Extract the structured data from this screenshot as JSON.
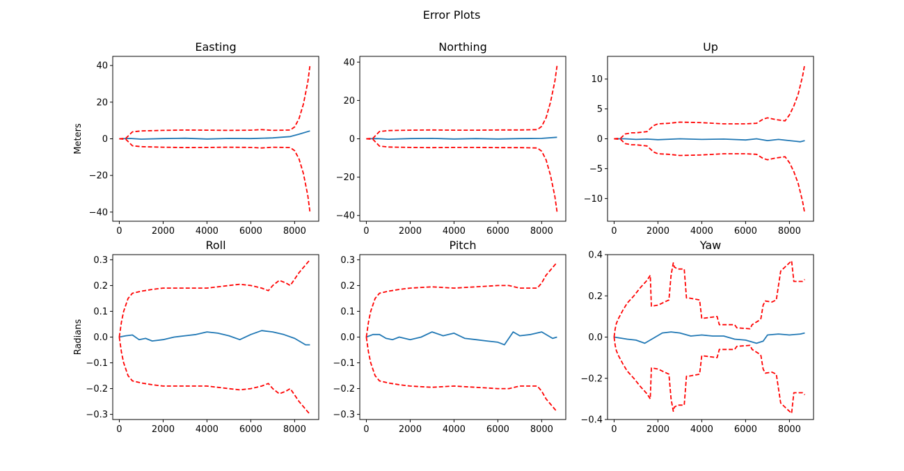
{
  "figure": {
    "title": "Error Plots"
  },
  "chart_data": [
    {
      "type": "line",
      "title": "Easting",
      "ylabel": "Meters",
      "xlabel": "",
      "xlim": [
        -300,
        9100
      ],
      "ylim": [
        -45,
        45
      ],
      "xticks": [
        0,
        2000,
        4000,
        6000,
        8000
      ],
      "yticks": [
        -40,
        -20,
        0,
        20,
        40
      ],
      "series": [
        {
          "role": "error",
          "color": "#1f77b4",
          "x": [
            0,
            500,
            1000,
            2000,
            3000,
            4000,
            5000,
            6000,
            7000,
            7800,
            8200,
            8700
          ],
          "y": [
            0,
            0.2,
            -0.2,
            0.1,
            0.3,
            -0.1,
            0.2,
            0.1,
            0.5,
            1.2,
            2.5,
            4.3
          ]
        },
        {
          "role": "upper-bound",
          "color": "#ff0000",
          "x": [
            0,
            300,
            600,
            1000,
            2000,
            3000,
            4000,
            5000,
            6000,
            6500,
            7000,
            7800,
            8000,
            8200,
            8400,
            8600,
            8700
          ],
          "y": [
            0,
            0.3,
            3.8,
            4.3,
            4.6,
            4.8,
            4.7,
            4.6,
            4.7,
            5.0,
            4.6,
            4.8,
            6.5,
            11,
            19,
            31,
            40
          ]
        },
        {
          "role": "lower-bound",
          "color": "#ff0000",
          "x": [
            0,
            300,
            600,
            1000,
            2000,
            3000,
            4000,
            5000,
            6000,
            6500,
            7000,
            7800,
            8000,
            8200,
            8400,
            8600,
            8700
          ],
          "y": [
            0,
            -0.3,
            -3.8,
            -4.3,
            -4.6,
            -4.8,
            -4.7,
            -4.6,
            -4.7,
            -5.0,
            -4.6,
            -4.8,
            -6.5,
            -11,
            -19,
            -31,
            -40
          ]
        }
      ]
    },
    {
      "type": "line",
      "title": "Northing",
      "ylabel": "",
      "xlabel": "",
      "xlim": [
        -300,
        9100
      ],
      "ylim": [
        -43,
        43
      ],
      "xticks": [
        0,
        2000,
        4000,
        6000,
        8000
      ],
      "yticks": [
        -40,
        -20,
        0,
        20,
        40
      ],
      "series": [
        {
          "role": "error",
          "color": "#1f77b4",
          "x": [
            0,
            500,
            1000,
            2000,
            3000,
            4000,
            5000,
            6000,
            7000,
            8000,
            8700
          ],
          "y": [
            0,
            0.1,
            -0.2,
            0.1,
            0.2,
            -0.1,
            0.1,
            -0.1,
            0.1,
            0.2,
            0.8
          ]
        },
        {
          "role": "upper-bound",
          "color": "#ff0000",
          "x": [
            0,
            300,
            600,
            1000,
            2000,
            3000,
            4000,
            5000,
            6000,
            7000,
            7800,
            8000,
            8200,
            8400,
            8600,
            8700
          ],
          "y": [
            0,
            0.3,
            3.8,
            4.3,
            4.5,
            4.6,
            4.5,
            4.5,
            4.6,
            4.6,
            4.8,
            6.5,
            11,
            19,
            30,
            38
          ]
        },
        {
          "role": "lower-bound",
          "color": "#ff0000",
          "x": [
            0,
            300,
            600,
            1000,
            2000,
            3000,
            4000,
            5000,
            6000,
            7000,
            7800,
            8000,
            8200,
            8400,
            8600,
            8700
          ],
          "y": [
            0,
            -0.3,
            -3.8,
            -4.3,
            -4.5,
            -4.6,
            -4.5,
            -4.5,
            -4.6,
            -4.6,
            -4.8,
            -6.5,
            -11,
            -19,
            -30,
            -38
          ]
        }
      ]
    },
    {
      "type": "line",
      "title": "Up",
      "ylabel": "",
      "xlabel": "",
      "xlim": [
        -300,
        9100
      ],
      "ylim": [
        -13.8,
        13.8
      ],
      "xticks": [
        0,
        2000,
        4000,
        6000,
        8000
      ],
      "yticks": [
        -10,
        -5,
        0,
        5,
        10
      ],
      "series": [
        {
          "role": "error",
          "color": "#1f77b4",
          "x": [
            0,
            500,
            1000,
            1500,
            2000,
            3000,
            4000,
            5000,
            6000,
            6500,
            7000,
            7500,
            8000,
            8500,
            8700
          ],
          "y": [
            0,
            0,
            -0.1,
            -0.05,
            -0.15,
            0,
            -0.1,
            -0.05,
            -0.2,
            0,
            -0.3,
            -0.1,
            -0.3,
            -0.5,
            -0.3
          ]
        },
        {
          "role": "upper-bound",
          "color": "#ff0000",
          "x": [
            0,
            300,
            500,
            800,
            1000,
            1500,
            1800,
            2000,
            2500,
            3000,
            4000,
            5000,
            6000,
            6500,
            6800,
            7000,
            7400,
            7800,
            8000,
            8200,
            8400,
            8600,
            8700
          ],
          "y": [
            0,
            0.1,
            0.8,
            1.0,
            1.0,
            1.2,
            2.2,
            2.5,
            2.6,
            2.8,
            2.7,
            2.5,
            2.5,
            2.6,
            3.3,
            3.5,
            3.2,
            3.0,
            4.0,
            5.5,
            7.5,
            10.5,
            12.5
          ]
        },
        {
          "role": "lower-bound",
          "color": "#ff0000",
          "x": [
            0,
            300,
            500,
            800,
            1000,
            1500,
            1800,
            2000,
            2500,
            3000,
            4000,
            5000,
            6000,
            6500,
            6800,
            7000,
            7400,
            7800,
            8000,
            8200,
            8400,
            8600,
            8700
          ],
          "y": [
            0,
            -0.1,
            -0.8,
            -1.0,
            -1.0,
            -1.2,
            -2.2,
            -2.5,
            -2.6,
            -2.8,
            -2.7,
            -2.5,
            -2.5,
            -2.6,
            -3.3,
            -3.5,
            -3.2,
            -3.0,
            -4.0,
            -5.5,
            -7.5,
            -10.5,
            -12.5
          ]
        }
      ]
    },
    {
      "type": "line",
      "title": "Roll",
      "ylabel": "Radians",
      "xlabel": "",
      "xlim": [
        -300,
        9100
      ],
      "ylim": [
        -0.32,
        0.32
      ],
      "xticks": [
        0,
        2000,
        4000,
        6000,
        8000
      ],
      "yticks": [
        -0.3,
        -0.2,
        -0.1,
        0.0,
        0.1,
        0.2,
        0.3
      ],
      "series": [
        {
          "role": "error",
          "color": "#1f77b4",
          "x": [
            0,
            300,
            600,
            900,
            1200,
            1500,
            2000,
            2500,
            3000,
            3500,
            4000,
            4500,
            5000,
            5500,
            6000,
            6500,
            7000,
            7500,
            8000,
            8500,
            8700
          ],
          "y": [
            0,
            0.005,
            0.008,
            -0.01,
            -0.005,
            -0.015,
            -0.01,
            0,
            0.005,
            0.01,
            0.02,
            0.015,
            0.005,
            -0.01,
            0.01,
            0.025,
            0.02,
            0.01,
            -0.005,
            -0.03,
            -0.03
          ]
        },
        {
          "role": "upper-bound",
          "color": "#ff0000",
          "x": [
            0,
            100,
            200,
            400,
            600,
            1000,
            1500,
            2000,
            3000,
            4000,
            5000,
            5500,
            6000,
            6500,
            6800,
            7000,
            7300,
            7600,
            7800,
            8200,
            8500,
            8700
          ],
          "y": [
            0,
            0.06,
            0.1,
            0.15,
            0.17,
            0.178,
            0.185,
            0.19,
            0.19,
            0.19,
            0.2,
            0.205,
            0.2,
            0.19,
            0.18,
            0.2,
            0.22,
            0.21,
            0.2,
            0.25,
            0.28,
            0.3
          ]
        },
        {
          "role": "lower-bound",
          "color": "#ff0000",
          "x": [
            0,
            100,
            200,
            400,
            600,
            1000,
            1500,
            2000,
            3000,
            4000,
            5000,
            5500,
            6000,
            6500,
            6800,
            7000,
            7300,
            7600,
            7800,
            8200,
            8500,
            8700
          ],
          "y": [
            0,
            -0.06,
            -0.1,
            -0.15,
            -0.17,
            -0.178,
            -0.185,
            -0.19,
            -0.19,
            -0.19,
            -0.2,
            -0.205,
            -0.2,
            -0.19,
            -0.18,
            -0.2,
            -0.22,
            -0.21,
            -0.2,
            -0.25,
            -0.28,
            -0.3
          ]
        }
      ]
    },
    {
      "type": "line",
      "title": "Pitch",
      "ylabel": "",
      "xlabel": "",
      "xlim": [
        -300,
        9100
      ],
      "ylim": [
        -0.32,
        0.32
      ],
      "xticks": [
        0,
        2000,
        4000,
        6000,
        8000
      ],
      "yticks": [
        -0.3,
        -0.2,
        -0.1,
        0.0,
        0.1,
        0.2,
        0.3
      ],
      "series": [
        {
          "role": "error",
          "color": "#1f77b4",
          "x": [
            0,
            300,
            600,
            900,
            1200,
            1500,
            2000,
            2500,
            3000,
            3500,
            4000,
            4500,
            5000,
            5500,
            6000,
            6300,
            6700,
            7000,
            7500,
            8000,
            8500,
            8700
          ],
          "y": [
            0,
            0.01,
            0.01,
            -0.005,
            -0.01,
            0,
            -0.01,
            0,
            0.02,
            0.005,
            0.015,
            -0.005,
            -0.01,
            -0.015,
            -0.02,
            -0.03,
            0.02,
            0.005,
            0.01,
            0.02,
            -0.005,
            0
          ]
        },
        {
          "role": "upper-bound",
          "color": "#ff0000",
          "x": [
            0,
            100,
            200,
            400,
            600,
            1000,
            1500,
            2000,
            3000,
            4000,
            5000,
            6000,
            6500,
            7000,
            7800,
            8000,
            8200,
            8500,
            8700
          ],
          "y": [
            0,
            0.06,
            0.1,
            0.15,
            0.17,
            0.178,
            0.185,
            0.19,
            0.195,
            0.19,
            0.195,
            0.2,
            0.2,
            0.19,
            0.19,
            0.21,
            0.24,
            0.27,
            0.29
          ]
        },
        {
          "role": "lower-bound",
          "color": "#ff0000",
          "x": [
            0,
            100,
            200,
            400,
            600,
            1000,
            1500,
            2000,
            3000,
            4000,
            5000,
            6000,
            6500,
            7000,
            7800,
            8000,
            8200,
            8500,
            8700
          ],
          "y": [
            0,
            -0.06,
            -0.1,
            -0.15,
            -0.17,
            -0.178,
            -0.185,
            -0.19,
            -0.195,
            -0.19,
            -0.195,
            -0.2,
            -0.2,
            -0.19,
            -0.19,
            -0.21,
            -0.24,
            -0.27,
            -0.29
          ]
        }
      ]
    },
    {
      "type": "line",
      "title": "Yaw",
      "ylabel": "",
      "xlabel": "",
      "xlim": [
        -300,
        9100
      ],
      "ylim": [
        -0.4,
        0.4
      ],
      "xticks": [
        0,
        2000,
        4000,
        6000,
        8000
      ],
      "yticks": [
        -0.4,
        -0.2,
        0.0,
        0.2,
        0.4
      ],
      "series": [
        {
          "role": "error",
          "color": "#1f77b4",
          "x": [
            0,
            300,
            600,
            1000,
            1400,
            1800,
            2200,
            2600,
            3000,
            3500,
            4000,
            4500,
            5000,
            5500,
            6000,
            6500,
            6800,
            7000,
            7500,
            8000,
            8500,
            8700
          ],
          "y": [
            0,
            -0.005,
            -0.01,
            -0.015,
            -0.03,
            -0.005,
            0.02,
            0.025,
            0.02,
            0.005,
            0.01,
            0.005,
            0.005,
            -0.01,
            -0.015,
            -0.03,
            -0.02,
            0.01,
            0.015,
            0.01,
            0.015,
            0.02
          ]
        },
        {
          "role": "upper-bound",
          "color": "#ff0000",
          "x": [
            0,
            50,
            100,
            200,
            400,
            600,
            900,
            1200,
            1500,
            1650,
            1700,
            2000,
            2500,
            2600,
            2700,
            2750,
            2900,
            3200,
            3300,
            3400,
            3900,
            4000,
            4700,
            4800,
            5500,
            5600,
            6200,
            6300,
            6600,
            6700,
            6800,
            6900,
            7200,
            7400,
            7600,
            7900,
            8100,
            8200,
            8600,
            8700
          ],
          "y": [
            0,
            0.04,
            0.065,
            0.09,
            0.13,
            0.165,
            0.2,
            0.24,
            0.275,
            0.3,
            0.15,
            0.155,
            0.18,
            0.3,
            0.36,
            0.34,
            0.33,
            0.33,
            0.19,
            0.19,
            0.18,
            0.09,
            0.1,
            0.06,
            0.06,
            0.045,
            0.04,
            0.06,
            0.08,
            0.09,
            0.155,
            0.175,
            0.17,
            0.18,
            0.32,
            0.35,
            0.37,
            0.27,
            0.27,
            0.28
          ]
        },
        {
          "role": "lower-bound",
          "color": "#ff0000",
          "x": [
            0,
            50,
            100,
            200,
            400,
            600,
            900,
            1200,
            1500,
            1650,
            1700,
            2000,
            2500,
            2600,
            2700,
            2750,
            2900,
            3200,
            3300,
            3400,
            3900,
            4000,
            4700,
            4800,
            5500,
            5600,
            6200,
            6300,
            6600,
            6700,
            6800,
            6900,
            7200,
            7400,
            7600,
            7900,
            8100,
            8200,
            8600,
            8700
          ],
          "y": [
            0,
            -0.04,
            -0.065,
            -0.09,
            -0.13,
            -0.165,
            -0.2,
            -0.24,
            -0.275,
            -0.3,
            -0.15,
            -0.155,
            -0.18,
            -0.3,
            -0.36,
            -0.34,
            -0.33,
            -0.33,
            -0.19,
            -0.19,
            -0.18,
            -0.09,
            -0.1,
            -0.06,
            -0.06,
            -0.045,
            -0.04,
            -0.06,
            -0.08,
            -0.09,
            -0.155,
            -0.175,
            -0.17,
            -0.18,
            -0.32,
            -0.35,
            -0.37,
            -0.27,
            -0.27,
            -0.28
          ]
        }
      ]
    }
  ]
}
